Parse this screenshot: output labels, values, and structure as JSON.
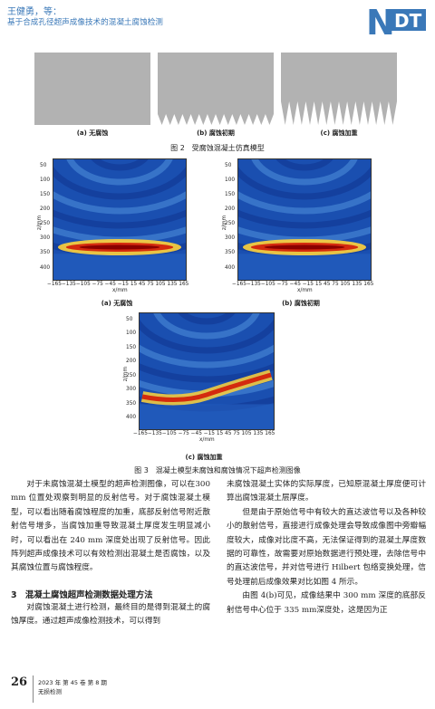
{
  "header": {
    "authors": "王健勇，等：",
    "title": "基于合成孔径超声成像技术的混凝土腐蚀检测",
    "logo": "NDT"
  },
  "fig2": {
    "panels": [
      {
        "label": "(a) 无腐蚀"
      },
      {
        "label": "(b) 腐蚀初期"
      },
      {
        "label": "(c) 腐蚀加重"
      }
    ],
    "caption": "图 2　受腐蚀混凝土仿真模型"
  },
  "fig3": {
    "panels": [
      {
        "label": "(a) 无腐蚀"
      },
      {
        "label": "(b) 腐蚀初期"
      },
      {
        "label": "(c) 腐蚀加重"
      }
    ],
    "y_ticks": [
      "50",
      "100",
      "150",
      "200",
      "250",
      "300",
      "350",
      "400"
    ],
    "x_ticks": "−165−135−105 −75 −45 −15 15 45 75 105 135 165",
    "xlabel": "x/mm",
    "ylabel": "z/mm",
    "caption": "图 3　混凝土模型未腐蚀和腐蚀情况下超声检测图像"
  },
  "left_col": {
    "p1": "对于未腐蚀混凝土模型的超声检测图像，可以在300 mm 位置处观察到明显的反射信号。对于腐蚀混凝土模型，可以看出随着腐蚀程度的加重，底部反射信号附近散射信号增多，当腐蚀加重导致混凝土厚度发生明显减小时，可以看出在 240 mm 深度处出现了反射信号。因此阵列超声成像技术可以有效检测出混凝土是否腐蚀，以及其腐蚀位置与腐蚀程度。",
    "heading": "3　混凝土腐蚀超声检测数据处理方法",
    "p2": "对腐蚀混凝土进行检测，最终目的是得到混凝土的腐蚀厚度。通过超声成像检测技术，可以得到"
  },
  "right_col": {
    "p1": "未腐蚀混凝土实体的实际厚度，已知原混凝土厚度便可计算出腐蚀混凝土层厚度。",
    "p2": "但是由于原始信号中有较大的直达波信号以及各种较小的散射信号，直接进行成像处理会导致成像图中旁瓣幅度较大，成像对比度不高，无法保证得到的混凝土厚度数据的可靠性，故需要对原始数据进行预处理，去除信号中的直达波信号，并对信号进行 Hilbert 包络变换处理，信号处理前后成像效果对比如图 4 所示。",
    "p3": "由图 4(b)可见，成像结果中 300 mm 深度的底部反射信号中心位于 335 mm深度处，这是因为正"
  },
  "footer": {
    "page": "26",
    "journal_issue": "2023 年 第 45 卷 第 8 期",
    "journal_name": "无损检测"
  },
  "colors": {
    "accent": "#3a78b8",
    "heatmap_bg": "#1a4fb0",
    "hot": "#c0140e"
  }
}
